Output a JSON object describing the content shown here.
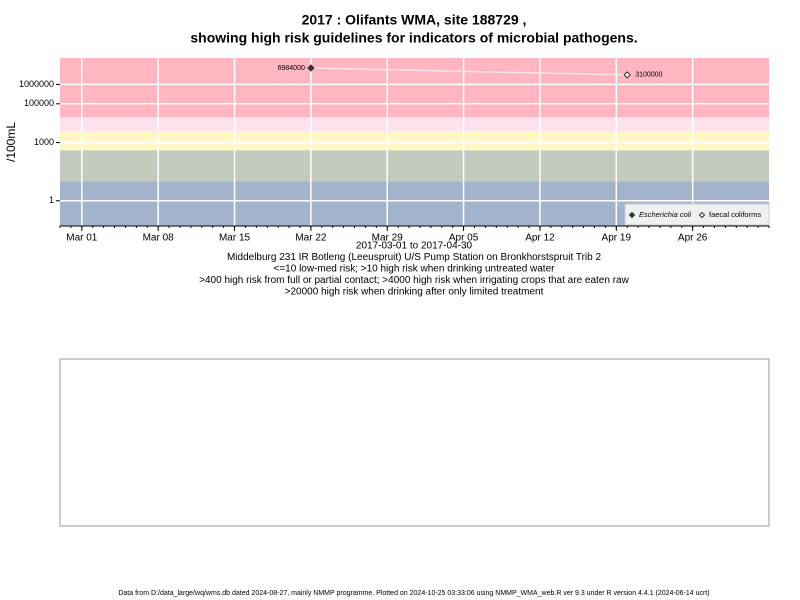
{
  "chart_data": {
    "type": "line",
    "title": [
      "2017 : Olifants WMA, site 188729 ,",
      "showing high risk guidelines for indicators of microbial pathogens."
    ],
    "y_label": "/100mL",
    "subtitle": [
      "2017-03-01 to 2017-04-30",
      "Middelburg 231 IR Botleng (Leeuspruit) U/S Pump Station on Bronkhorstspruit Trib 2",
      "<=10 low-med risk; >10 high risk when drinking untreated water",
      ">400 high risk from full or partial contact; >4000 high risk when irrigating crops that are eaten raw",
      ">20000 high risk when drinking after only limited treatment"
    ],
    "log_y": true,
    "grid": true,
    "legend_position": "bottom-right",
    "connector_color": "#f4e6e8",
    "risk_thresholds": [
      10,
      400,
      4000,
      20000
    ],
    "risk_colors": [
      "#a3b3cb",
      "#c2cbbd",
      "#fff7c4",
      "#fde2ee",
      "#ffb6c1"
    ],
    "xlim": [
      "2017-02-27",
      "2017-05-03"
    ],
    "xticks": [
      {
        "value": "2017-03-01",
        "label": "Mar 01"
      },
      {
        "value": "2017-03-08",
        "label": "Mar 08"
      },
      {
        "value": "2017-03-15",
        "label": "Mar 15"
      },
      {
        "value": "2017-03-22",
        "label": "Mar 22"
      },
      {
        "value": "2017-03-29",
        "label": "Mar 29"
      },
      {
        "value": "2017-04-05",
        "label": "Apr 05"
      },
      {
        "value": "2017-04-12",
        "label": "Apr 12"
      },
      {
        "value": "2017-04-19",
        "label": "Apr 19"
      },
      {
        "value": "2017-04-26",
        "label": "Apr 26"
      }
    ],
    "ylim": [
      0.05,
      23000000
    ],
    "yticks": [
      1,
      1000,
      100000,
      1000000
    ],
    "series": [
      {
        "name": "Escherichia coli",
        "color": "#333333",
        "marker": "filled",
        "x": [
          "2017-03-22"
        ],
        "values": [
          6984000
        ]
      },
      {
        "name": "faecal coliforms",
        "color": "#333333",
        "marker": "open",
        "x": [
          "2017-04-20"
        ],
        "values": [
          3100000
        ]
      }
    ]
  },
  "footer": "Data from D:/data_large/wq/wms.db dated 2024-08-27, mainly NMMP programme. Plotted on 2024-10-25 03:33:06 using NMMP_WMA_web.R ver 9.3 under R version 4.4.1 (2024-06-14 ucrt)"
}
